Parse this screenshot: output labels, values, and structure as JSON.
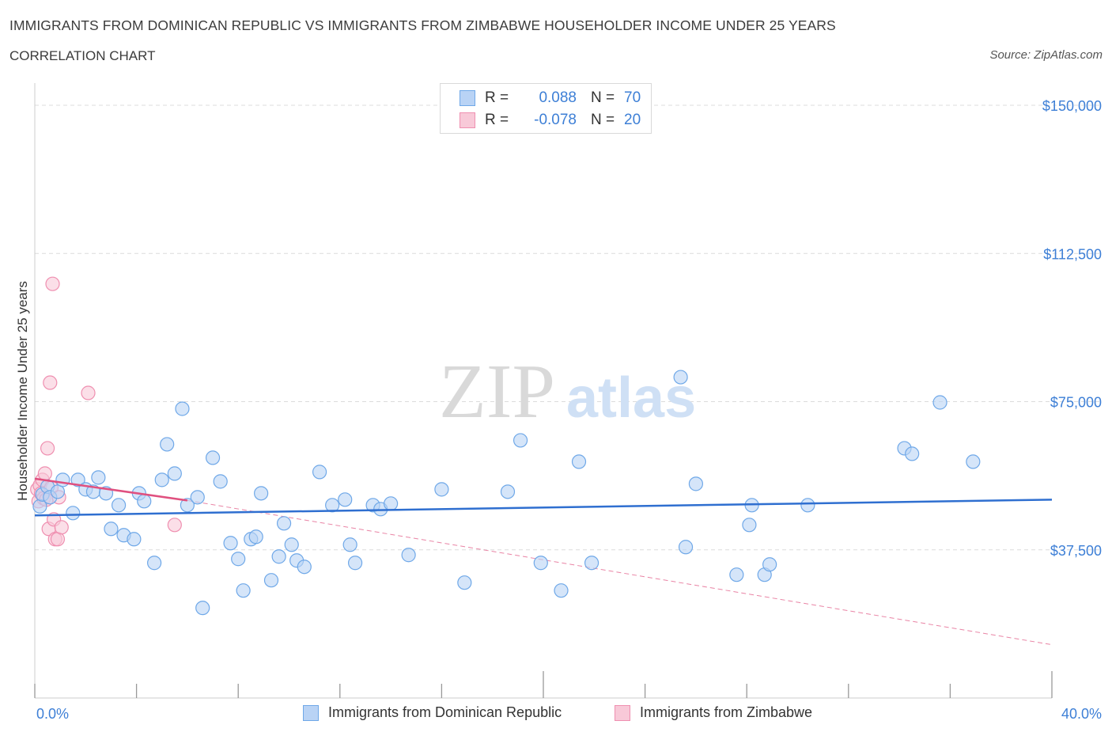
{
  "header": {
    "title": "IMMIGRANTS FROM DOMINICAN REPUBLIC VS IMMIGRANTS FROM ZIMBABWE HOUSEHOLDER INCOME UNDER 25 YEARS",
    "subtitle": "CORRELATION CHART",
    "source": "Source: ZipAtlas.com"
  },
  "legend": {
    "rows": [
      {
        "r_label": "R =",
        "r_value": "0.088",
        "n_label": "N =",
        "n_value": "70"
      },
      {
        "r_label": "R =",
        "r_value": "-0.078",
        "n_label": "N =",
        "n_value": "20"
      }
    ]
  },
  "bottom_legend": {
    "series1": "Immigrants from Dominican Republic",
    "series2": "Immigrants from Zimbabwe"
  },
  "chart_data": {
    "type": "scatter",
    "title": "IMMIGRANTS FROM DOMINICAN REPUBLIC VS IMMIGRANTS FROM ZIMBABWE HOUSEHOLDER INCOME UNDER 25 YEARS",
    "ylabel": "Householder Income Under 25 years",
    "xlabel": "",
    "xlim": [
      0,
      40
    ],
    "ylim": [
      0,
      150000
    ],
    "x_tick_labels": [
      "0.0%",
      "40.0%"
    ],
    "y_ticks": [
      37500,
      75000,
      112500,
      150000
    ],
    "y_tick_labels": [
      "$37,500",
      "$75,000",
      "$112,500",
      "$150,000"
    ],
    "grid": true,
    "watermark": {
      "zip": "ZIP",
      "atlas": "atlas"
    },
    "colors": {
      "series1": "#6fa8e8",
      "series1_fill": "#b9d3f5",
      "series2": "#ef8fb0",
      "series2_fill": "#f8c9d8",
      "trend1": "#2f6fd0",
      "trend2": "#e0507f"
    },
    "series": [
      {
        "name": "Immigrants from Dominican Republic",
        "trend": {
          "x": [
            0,
            40
          ],
          "y": [
            46200,
            50200
          ]
        },
        "points": [
          [
            0.2,
            48500
          ],
          [
            0.3,
            51500
          ],
          [
            0.5,
            53500
          ],
          [
            0.6,
            50800
          ],
          [
            0.9,
            52200
          ],
          [
            1.1,
            55200
          ],
          [
            1.5,
            46800
          ],
          [
            1.7,
            55200
          ],
          [
            2.0,
            52800
          ],
          [
            2.3,
            52200
          ],
          [
            2.5,
            55800
          ],
          [
            2.8,
            51800
          ],
          [
            3.0,
            42800
          ],
          [
            3.3,
            48800
          ],
          [
            3.5,
            41200
          ],
          [
            3.9,
            40200
          ],
          [
            4.1,
            51800
          ],
          [
            4.3,
            49800
          ],
          [
            4.7,
            34200
          ],
          [
            5.0,
            55200
          ],
          [
            5.2,
            64200
          ],
          [
            5.5,
            56800
          ],
          [
            5.8,
            73200
          ],
          [
            6.0,
            48800
          ],
          [
            6.4,
            50800
          ],
          [
            6.6,
            22800
          ],
          [
            7.0,
            60800
          ],
          [
            7.3,
            54800
          ],
          [
            7.7,
            39200
          ],
          [
            8.0,
            35200
          ],
          [
            8.2,
            27200
          ],
          [
            8.5,
            40200
          ],
          [
            8.7,
            40800
          ],
          [
            8.9,
            51800
          ],
          [
            9.3,
            29800
          ],
          [
            9.6,
            35800
          ],
          [
            9.8,
            44200
          ],
          [
            10.1,
            38800
          ],
          [
            10.3,
            34800
          ],
          [
            10.6,
            33200
          ],
          [
            11.2,
            57200
          ],
          [
            11.7,
            48800
          ],
          [
            12.2,
            50200
          ],
          [
            12.4,
            38800
          ],
          [
            12.6,
            34200
          ],
          [
            13.3,
            48800
          ],
          [
            13.6,
            47800
          ],
          [
            14.0,
            49200
          ],
          [
            14.7,
            36200
          ],
          [
            16.0,
            52800
          ],
          [
            16.9,
            29200
          ],
          [
            18.6,
            52200
          ],
          [
            19.1,
            65200
          ],
          [
            19.9,
            34200
          ],
          [
            20.7,
            27200
          ],
          [
            21.4,
            59800
          ],
          [
            21.9,
            34200
          ],
          [
            25.4,
            81200
          ],
          [
            25.6,
            38200
          ],
          [
            26.0,
            54200
          ],
          [
            27.6,
            31200
          ],
          [
            28.1,
            43800
          ],
          [
            28.2,
            48800
          ],
          [
            28.7,
            31200
          ],
          [
            28.9,
            33800
          ],
          [
            30.4,
            48800
          ],
          [
            34.2,
            63200
          ],
          [
            34.5,
            61800
          ],
          [
            35.6,
            74800
          ],
          [
            36.9,
            59800
          ]
        ]
      },
      {
        "name": "Immigrants from Zimbabwe",
        "trend": {
          "x": [
            0,
            6
          ],
          "y": [
            55500,
            50000
          ]
        },
        "trend_ext": {
          "x": [
            6,
            40
          ],
          "y": [
            50000,
            13500
          ]
        },
        "points": [
          [
            0.1,
            52800
          ],
          [
            0.15,
            49800
          ],
          [
            0.2,
            53800
          ],
          [
            0.25,
            51800
          ],
          [
            0.3,
            55200
          ],
          [
            0.35,
            50500
          ],
          [
            0.4,
            56800
          ],
          [
            0.45,
            50200
          ],
          [
            0.5,
            63200
          ],
          [
            0.55,
            42800
          ],
          [
            0.6,
            79800
          ],
          [
            0.65,
            53200
          ],
          [
            0.7,
            104800
          ],
          [
            0.75,
            45200
          ],
          [
            0.8,
            40200
          ],
          [
            0.9,
            40200
          ],
          [
            0.95,
            50800
          ],
          [
            1.05,
            43200
          ],
          [
            2.1,
            77200
          ],
          [
            5.5,
            43800
          ]
        ]
      }
    ]
  }
}
